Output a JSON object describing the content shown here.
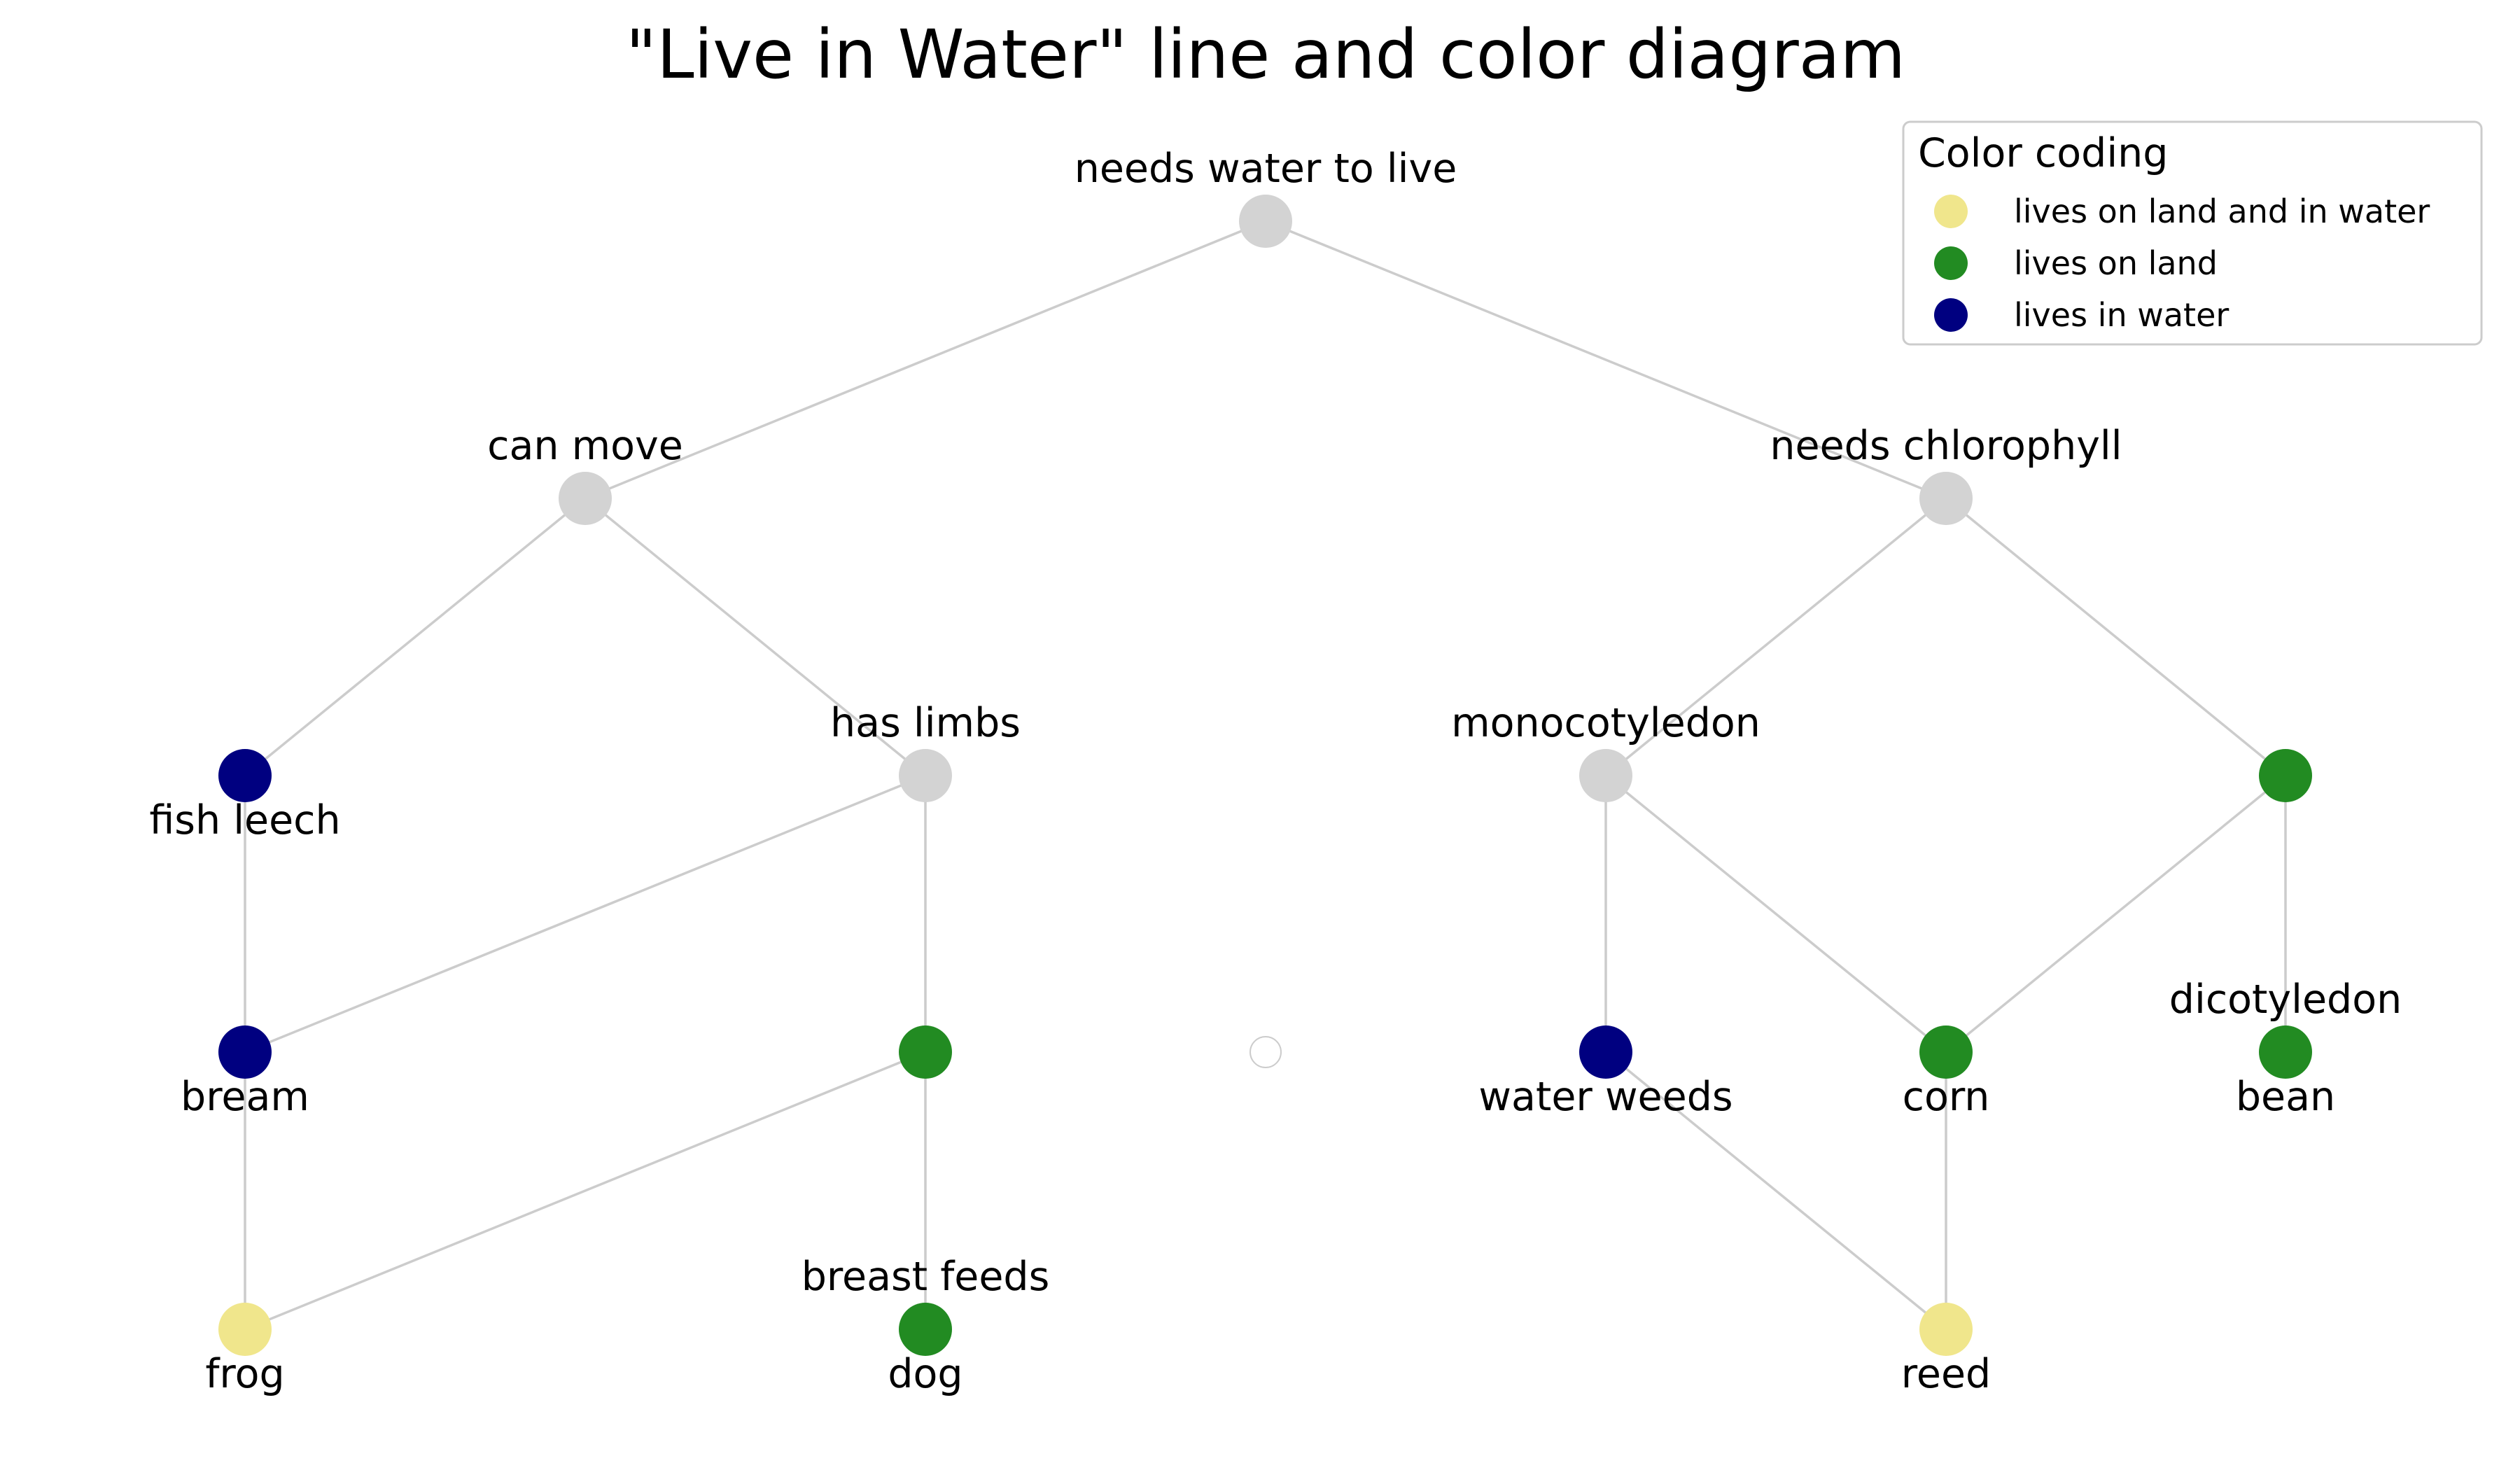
{
  "title": "\"Live in Water\" line and color diagram",
  "colors": {
    "gray": "#d3d3d3",
    "amphibious": "#f0e68c",
    "land": "#228b22",
    "water": "#000080",
    "white": "#ffffff",
    "edge": "#cccccc"
  },
  "legend": {
    "title": "Color coding",
    "items": [
      {
        "label": "lives on land and in water",
        "color": "#f0e68c"
      },
      {
        "label": "lives on land",
        "color": "#228b22"
      },
      {
        "label": "lives in water",
        "color": "#000080"
      }
    ]
  },
  "nodes": [
    {
      "id": "n_water",
      "label": "needs water to live",
      "color": "#d3d3d3",
      "label_side": "above"
    },
    {
      "id": "n_move",
      "label": "can move",
      "color": "#d3d3d3",
      "label_side": "above"
    },
    {
      "id": "n_chloro",
      "label": "needs chlorophyll",
      "color": "#d3d3d3",
      "label_side": "above"
    },
    {
      "id": "n_leech",
      "label": "fish leech",
      "color": "#000080",
      "label_side": "below"
    },
    {
      "id": "n_limbs",
      "label": "has limbs",
      "color": "#d3d3d3",
      "label_side": "above"
    },
    {
      "id": "n_mono",
      "label": "monocotyledon",
      "color": "#d3d3d3",
      "label_side": "above"
    },
    {
      "id": "n_dico",
      "label": "",
      "color": "#228b22",
      "label_side": "none"
    },
    {
      "id": "n_bream",
      "label": "bream",
      "color": "#000080",
      "label_side": "below"
    },
    {
      "id": "n_breast",
      "label": "",
      "color": "#228b22",
      "label_side": "none"
    },
    {
      "id": "n_empty",
      "label": "",
      "color": "#ffffff",
      "label_side": "none"
    },
    {
      "id": "n_weeds",
      "label": "water weeds",
      "color": "#000080",
      "label_side": "below"
    },
    {
      "id": "n_corn",
      "label": "corn",
      "color": "#228b22",
      "label_side": "below"
    },
    {
      "id": "n_bean",
      "label": "bean",
      "color": "#228b22",
      "label_side": "below",
      "label_above": "dicotyledon"
    },
    {
      "id": "n_frog",
      "label": "frog",
      "color": "#f0e68c",
      "label_side": "below"
    },
    {
      "id": "n_dog",
      "label": "dog",
      "color": "#228b22",
      "label_side": "below",
      "label_above": "breast feeds"
    },
    {
      "id": "n_reed",
      "label": "reed",
      "color": "#f0e68c",
      "label_side": "below"
    }
  ],
  "edges": [
    [
      "n_water",
      "n_move"
    ],
    [
      "n_water",
      "n_chloro"
    ],
    [
      "n_move",
      "n_leech"
    ],
    [
      "n_move",
      "n_limbs"
    ],
    [
      "n_chloro",
      "n_mono"
    ],
    [
      "n_chloro",
      "n_dico"
    ],
    [
      "n_leech",
      "n_bream"
    ],
    [
      "n_limbs",
      "n_bream"
    ],
    [
      "n_limbs",
      "n_breast"
    ],
    [
      "n_mono",
      "n_weeds"
    ],
    [
      "n_mono",
      "n_corn"
    ],
    [
      "n_dico",
      "n_corn"
    ],
    [
      "n_dico",
      "n_bean"
    ],
    [
      "n_bream",
      "n_frog"
    ],
    [
      "n_breast",
      "n_frog"
    ],
    [
      "n_breast",
      "n_dog"
    ],
    [
      "n_weeds",
      "n_reed"
    ],
    [
      "n_corn",
      "n_reed"
    ]
  ]
}
